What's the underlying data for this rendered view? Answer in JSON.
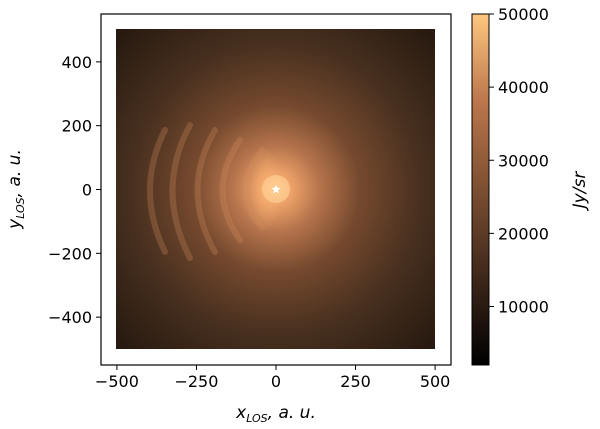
{
  "chart_data": {
    "type": "heatmap",
    "title": "",
    "xlabel": {
      "main": "x",
      "sub": "LOS",
      "rest": ", a. u."
    },
    "ylabel": {
      "main": "y",
      "sub": "LOS",
      "rest": ", a. u."
    },
    "xlim": [
      -550,
      550
    ],
    "ylim": [
      -550,
      550
    ],
    "image_extent": [
      -500,
      500,
      -500,
      500
    ],
    "x_ticks": [
      -500,
      -250,
      0,
      250,
      500
    ],
    "y_ticks": [
      -400,
      -200,
      0,
      200,
      400
    ],
    "x_tick_labels": [
      "−500",
      "−250",
      "0",
      "250",
      "500"
    ],
    "y_tick_labels": [
      "−400",
      "−200",
      "0",
      "200",
      "400"
    ],
    "star_marker": {
      "x": 0,
      "y": 0,
      "label": "star",
      "color": "#ffffff"
    },
    "colorbar": {
      "label": "Jy/sr",
      "min": 2000,
      "max": 50000,
      "ticks": [
        10000,
        20000,
        30000,
        40000,
        50000
      ],
      "tick_labels": [
        "10000",
        "20000",
        "30000",
        "40000",
        "50000"
      ],
      "colormap": "copper"
    },
    "peak_value": 50000,
    "background_value": 4000
  }
}
